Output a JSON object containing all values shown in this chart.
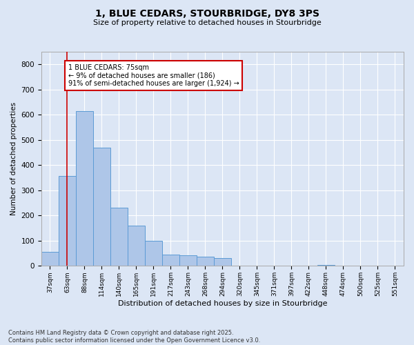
{
  "title": "1, BLUE CEDARS, STOURBRIDGE, DY8 3PS",
  "subtitle": "Size of property relative to detached houses in Stourbridge",
  "xlabel": "Distribution of detached houses by size in Stourbridge",
  "ylabel": "Number of detached properties",
  "bin_labels": [
    "37sqm",
    "63sqm",
    "88sqm",
    "114sqm",
    "140sqm",
    "165sqm",
    "191sqm",
    "217sqm",
    "243sqm",
    "268sqm",
    "294sqm",
    "320sqm",
    "345sqm",
    "371sqm",
    "397sqm",
    "422sqm",
    "448sqm",
    "474sqm",
    "500sqm",
    "525sqm",
    "551sqm"
  ],
  "bar_heights": [
    55,
    358,
    615,
    470,
    230,
    160,
    100,
    45,
    42,
    38,
    30,
    0,
    0,
    0,
    0,
    0,
    5,
    0,
    0,
    0,
    0
  ],
  "bar_color": "#aec6e8",
  "bar_edge_color": "#5b9bd5",
  "annotation_text": "1 BLUE CEDARS: 75sqm\n← 9% of detached houses are smaller (186)\n91% of semi-detached houses are larger (1,924) →",
  "annotation_box_color": "#ffffff",
  "annotation_box_edge": "#cc0000",
  "vline_color": "#cc0000",
  "background_color": "#dce6f5",
  "plot_background": "#dce6f5",
  "footer_line1": "Contains HM Land Registry data © Crown copyright and database right 2025.",
  "footer_line2": "Contains public sector information licensed under the Open Government Licence v3.0.",
  "ylim": [
    0,
    850
  ],
  "yticks": [
    0,
    100,
    200,
    300,
    400,
    500,
    600,
    700,
    800
  ]
}
